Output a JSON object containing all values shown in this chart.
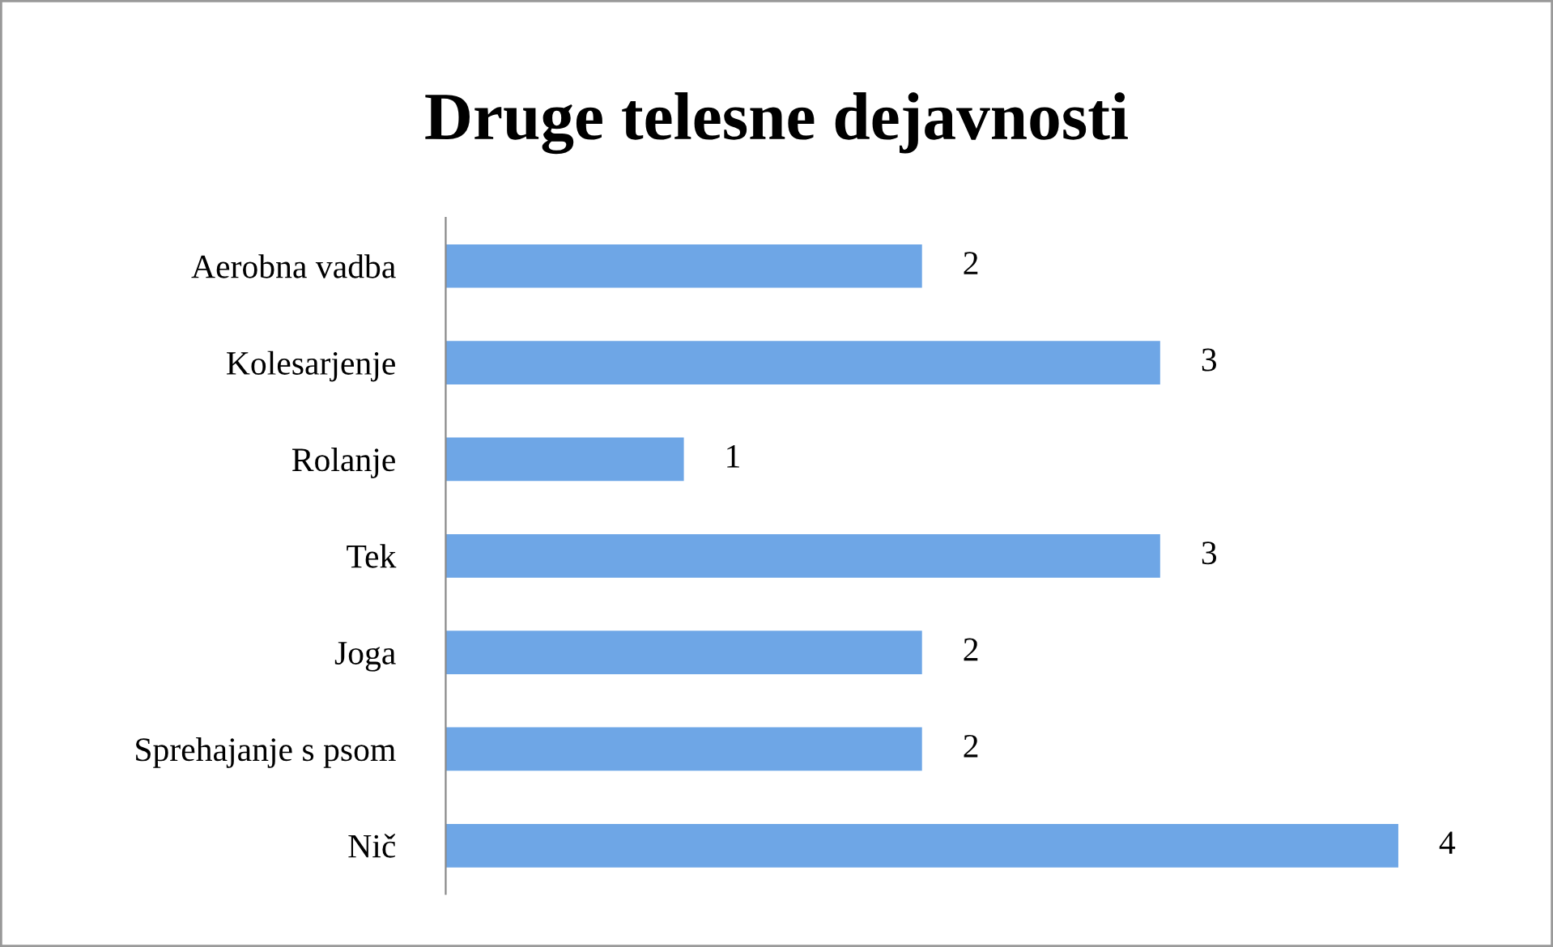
{
  "chart_data": {
    "type": "bar",
    "orientation": "horizontal",
    "title": "Druge telesne dejavnosti",
    "categories": [
      "Aerobna vadba",
      "Kolesarjenje",
      "Rolanje",
      "Tek",
      "Joga",
      "Sprehajanje s psom",
      "Nič"
    ],
    "values": [
      2,
      3,
      1,
      3,
      2,
      2,
      4
    ],
    "color": "#6ea6e6",
    "data_labels": true,
    "grid": false,
    "legend": false
  }
}
